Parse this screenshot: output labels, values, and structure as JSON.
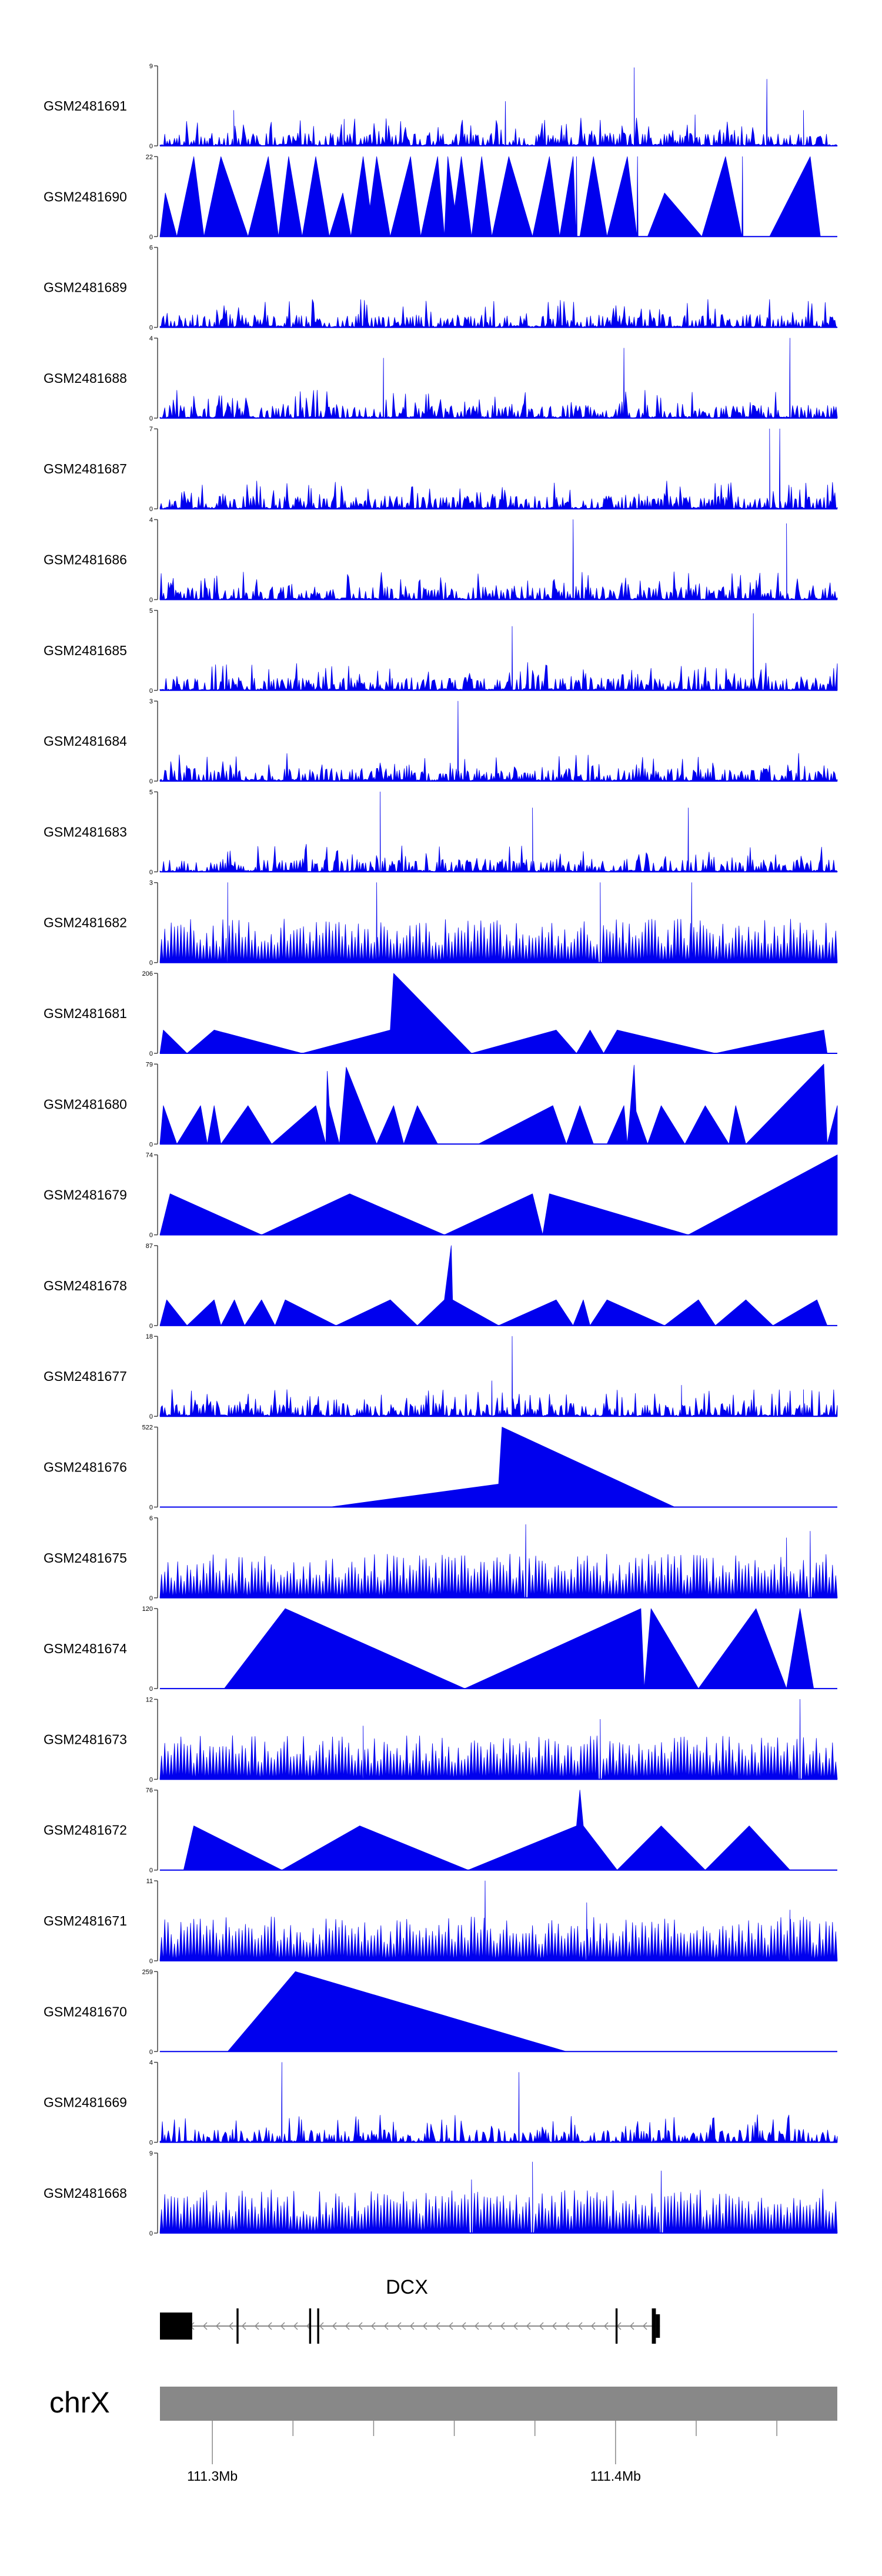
{
  "chart_data": {
    "type": "area",
    "title": "",
    "xlabel": "",
    "chromosome": "chrX",
    "x_range_mb": [
      111.287,
      111.455
    ],
    "x_ticks": [
      {
        "value": 111.3,
        "label": "111.3Mb"
      },
      {
        "value": 111.4,
        "label": "111.4Mb"
      }
    ],
    "minor_ticks_mb": [
      111.32,
      111.34,
      111.36,
      111.38,
      111.42,
      111.44
    ],
    "tracks": [
      {
        "name": "GSM2481691",
        "ymax": 9,
        "ylabel_top": "9",
        "ylabel_bottom": "0",
        "pattern": "dense",
        "seed": 11,
        "spikes": [
          [
            0.109,
            4
          ],
          [
            0.272,
            3
          ],
          [
            0.51,
            5
          ],
          [
            0.7,
            8.8
          ],
          [
            0.79,
            3.5
          ],
          [
            0.896,
            7.5
          ],
          [
            0.95,
            4
          ]
        ]
      },
      {
        "name": "GSM2481690",
        "ymax": 22,
        "ylabel_top": "22",
        "ylabel_bottom": "0",
        "pattern": "points",
        "points": [
          [
            0.0,
            0
          ],
          [
            0.008,
            12
          ],
          [
            0.025,
            0
          ],
          [
            0.05,
            22
          ],
          [
            0.065,
            0
          ],
          [
            0.09,
            22
          ],
          [
            0.13,
            0
          ],
          [
            0.16,
            22
          ],
          [
            0.175,
            0
          ],
          [
            0.19,
            22
          ],
          [
            0.21,
            0
          ],
          [
            0.23,
            22
          ],
          [
            0.25,
            0
          ],
          [
            0.27,
            12
          ],
          [
            0.282,
            0
          ],
          [
            0.3,
            22
          ],
          [
            0.31,
            8
          ],
          [
            0.32,
            22
          ],
          [
            0.34,
            0
          ],
          [
            0.37,
            22
          ],
          [
            0.385,
            0
          ],
          [
            0.41,
            22
          ],
          [
            0.42,
            0
          ],
          [
            0.425,
            22
          ],
          [
            0.435,
            8
          ],
          [
            0.445,
            22
          ],
          [
            0.46,
            0
          ],
          [
            0.475,
            22
          ],
          [
            0.49,
            0
          ],
          [
            0.515,
            22
          ],
          [
            0.55,
            0
          ],
          [
            0.575,
            22
          ],
          [
            0.59,
            0
          ],
          [
            0.61,
            22
          ],
          [
            0.62,
            0
          ],
          [
            0.64,
            22
          ],
          [
            0.66,
            0
          ],
          [
            0.69,
            22
          ],
          [
            0.72,
            0
          ],
          [
            0.745,
            12
          ],
          [
            0.8,
            0
          ],
          [
            0.835,
            22
          ],
          [
            0.9,
            0
          ],
          [
            0.96,
            22
          ],
          [
            0.975,
            0
          ]
        ],
        "spikes": [
          [
            0.615,
            22
          ],
          [
            0.86,
            22
          ],
          [
            0.705,
            22
          ]
        ]
      },
      {
        "name": "GSM2481689",
        "ymax": 6,
        "ylabel_top": "6",
        "ylabel_bottom": "0",
        "pattern": "dense",
        "seed": 23,
        "spikes": []
      },
      {
        "name": "GSM2481688",
        "ymax": 4,
        "ylabel_top": "4",
        "ylabel_bottom": "0",
        "pattern": "dense",
        "seed": 31,
        "spikes": [
          [
            0.93,
            4
          ],
          [
            0.685,
            3.5
          ],
          [
            0.33,
            3
          ]
        ]
      },
      {
        "name": "GSM2481687",
        "ymax": 7,
        "ylabel_top": "7",
        "ylabel_bottom": "0",
        "pattern": "dense",
        "seed": 37,
        "spikes": [
          [
            0.915,
            7
          ],
          [
            0.9,
            7
          ]
        ]
      },
      {
        "name": "GSM2481686",
        "ymax": 4,
        "ylabel_top": "4",
        "ylabel_bottom": "0",
        "pattern": "dense",
        "seed": 41,
        "spikes": [
          [
            0.61,
            4
          ],
          [
            0.925,
            3.8
          ]
        ]
      },
      {
        "name": "GSM2481685",
        "ymax": 5,
        "ylabel_top": "5",
        "ylabel_bottom": "0",
        "pattern": "dense",
        "seed": 43,
        "spikes": [
          [
            0.876,
            4.8
          ],
          [
            0.52,
            4
          ]
        ]
      },
      {
        "name": "GSM2481684",
        "ymax": 3,
        "ylabel_top": "3",
        "ylabel_bottom": "0",
        "pattern": "dense",
        "seed": 47,
        "spikes": [
          [
            0.44,
            3
          ]
        ]
      },
      {
        "name": "GSM2481683",
        "ymax": 5,
        "ylabel_top": "5",
        "ylabel_bottom": "0",
        "pattern": "dense",
        "seed": 53,
        "spikes": [
          [
            0.325,
            5
          ],
          [
            0.55,
            4
          ],
          [
            0.78,
            4
          ]
        ]
      },
      {
        "name": "GSM2481682",
        "ymax": 3,
        "ylabel_top": "3",
        "ylabel_bottom": "0",
        "pattern": "sparse",
        "seed": 59,
        "spikes": [
          [
            0.1,
            3
          ],
          [
            0.32,
            3
          ],
          [
            0.65,
            3
          ],
          [
            0.785,
            3
          ]
        ]
      },
      {
        "name": "GSM2481681",
        "ymax": 206,
        "ylabel_top": "206",
        "ylabel_bottom": "0",
        "pattern": "points",
        "points": [
          [
            0.0,
            0
          ],
          [
            0.005,
            60
          ],
          [
            0.04,
            0
          ],
          [
            0.08,
            60
          ],
          [
            0.21,
            0
          ],
          [
            0.34,
            60
          ],
          [
            0.345,
            206
          ],
          [
            0.46,
            0
          ],
          [
            0.585,
            60
          ],
          [
            0.615,
            0
          ],
          [
            0.635,
            60
          ],
          [
            0.655,
            0
          ],
          [
            0.675,
            60
          ],
          [
            0.82,
            0
          ],
          [
            0.98,
            60
          ],
          [
            0.985,
            0
          ]
        ]
      },
      {
        "name": "GSM2481680",
        "ymax": 79,
        "ylabel_top": "79",
        "ylabel_bottom": "0",
        "pattern": "points",
        "points": [
          [
            0.0,
            0
          ],
          [
            0.005,
            38
          ],
          [
            0.025,
            0
          ],
          [
            0.06,
            38
          ],
          [
            0.07,
            0
          ],
          [
            0.08,
            38
          ],
          [
            0.09,
            0
          ],
          [
            0.13,
            38
          ],
          [
            0.165,
            0
          ],
          [
            0.23,
            38
          ],
          [
            0.245,
            0
          ],
          [
            0.247,
            72
          ],
          [
            0.25,
            38
          ],
          [
            0.265,
            0
          ],
          [
            0.275,
            76
          ],
          [
            0.32,
            0
          ],
          [
            0.345,
            38
          ],
          [
            0.36,
            0
          ],
          [
            0.38,
            38
          ],
          [
            0.41,
            0
          ],
          [
            0.47,
            0
          ],
          [
            0.58,
            38
          ],
          [
            0.6,
            0
          ],
          [
            0.62,
            38
          ],
          [
            0.64,
            0
          ],
          [
            0.66,
            0
          ],
          [
            0.685,
            38
          ],
          [
            0.69,
            0
          ],
          [
            0.7,
            78
          ],
          [
            0.705,
            0
          ],
          [
            0.7,
            38
          ],
          [
            0.72,
            0
          ],
          [
            0.74,
            38
          ],
          [
            0.775,
            0
          ],
          [
            0.805,
            38
          ],
          [
            0.84,
            0
          ],
          [
            0.85,
            38
          ],
          [
            0.865,
            0
          ],
          [
            0.98,
            79
          ],
          [
            0.985,
            0
          ],
          [
            1.0,
            38
          ]
        ]
      },
      {
        "name": "GSM2481679",
        "ymax": 74,
        "ylabel_top": "74",
        "ylabel_bottom": "0",
        "pattern": "points",
        "points": [
          [
            0.0,
            0
          ],
          [
            0.015,
            38
          ],
          [
            0.15,
            0
          ],
          [
            0.28,
            38
          ],
          [
            0.42,
            0
          ],
          [
            0.55,
            38
          ],
          [
            0.565,
            0
          ],
          [
            0.575,
            38
          ],
          [
            0.78,
            0
          ],
          [
            1.0,
            74
          ]
        ]
      },
      {
        "name": "GSM2481678",
        "ymax": 87,
        "ylabel_top": "87",
        "ylabel_bottom": "0",
        "pattern": "points",
        "points": [
          [
            0.0,
            0
          ],
          [
            0.01,
            28
          ],
          [
            0.04,
            0
          ],
          [
            0.08,
            28
          ],
          [
            0.09,
            0
          ],
          [
            0.11,
            28
          ],
          [
            0.125,
            0
          ],
          [
            0.15,
            28
          ],
          [
            0.17,
            0
          ],
          [
            0.185,
            28
          ],
          [
            0.26,
            0
          ],
          [
            0.34,
            28
          ],
          [
            0.38,
            0
          ],
          [
            0.42,
            28
          ],
          [
            0.43,
            87
          ],
          [
            0.432,
            28
          ],
          [
            0.5,
            0
          ],
          [
            0.585,
            28
          ],
          [
            0.61,
            0
          ],
          [
            0.625,
            28
          ],
          [
            0.635,
            0
          ],
          [
            0.66,
            28
          ],
          [
            0.745,
            0
          ],
          [
            0.795,
            28
          ],
          [
            0.82,
            0
          ],
          [
            0.865,
            28
          ],
          [
            0.905,
            0
          ],
          [
            0.97,
            28
          ],
          [
            0.985,
            0
          ]
        ]
      },
      {
        "name": "GSM2481677",
        "ymax": 18,
        "ylabel_top": "18",
        "ylabel_bottom": "0",
        "pattern": "dense",
        "seed": 61,
        "spikes": [
          [
            0.52,
            18
          ],
          [
            0.49,
            8
          ],
          [
            0.77,
            7
          ],
          [
            0.95,
            6
          ]
        ]
      },
      {
        "name": "GSM2481676",
        "ymax": 522,
        "ylabel_top": "522",
        "ylabel_bottom": "0",
        "pattern": "points",
        "points": [
          [
            0.0,
            0
          ],
          [
            0.25,
            0
          ],
          [
            0.5,
            150
          ],
          [
            0.505,
            522
          ],
          [
            0.76,
            0
          ]
        ]
      },
      {
        "name": "GSM2481675",
        "ymax": 6,
        "ylabel_top": "6",
        "ylabel_bottom": "0",
        "pattern": "sparse",
        "seed": 67,
        "spikes": [
          [
            0.54,
            5.5
          ],
          [
            0.96,
            5
          ],
          [
            0.925,
            4.5
          ]
        ]
      },
      {
        "name": "GSM2481674",
        "ymax": 120,
        "ylabel_top": "120",
        "ylabel_bottom": "0",
        "pattern": "points",
        "points": [
          [
            0.0,
            0
          ],
          [
            0.095,
            0
          ],
          [
            0.185,
            120
          ],
          [
            0.45,
            0
          ],
          [
            0.71,
            120
          ],
          [
            0.715,
            0
          ],
          [
            0.725,
            120
          ],
          [
            0.795,
            0
          ],
          [
            0.88,
            120
          ],
          [
            0.925,
            0
          ],
          [
            0.945,
            120
          ],
          [
            0.965,
            0
          ]
        ]
      },
      {
        "name": "GSM2481673",
        "ymax": 12,
        "ylabel_top": "12",
        "ylabel_bottom": "0",
        "pattern": "sparse",
        "seed": 71,
        "spikes": [
          [
            0.945,
            12
          ],
          [
            0.65,
            9
          ],
          [
            0.3,
            8
          ]
        ]
      },
      {
        "name": "GSM2481672",
        "ymax": 76,
        "ylabel_top": "76",
        "ylabel_bottom": "0",
        "pattern": "points",
        "points": [
          [
            0.0,
            0
          ],
          [
            0.035,
            0
          ],
          [
            0.05,
            42
          ],
          [
            0.18,
            0
          ],
          [
            0.295,
            42
          ],
          [
            0.455,
            0
          ],
          [
            0.615,
            42
          ],
          [
            0.62,
            76
          ],
          [
            0.625,
            42
          ],
          [
            0.675,
            0
          ],
          [
            0.74,
            42
          ],
          [
            0.805,
            0
          ],
          [
            0.87,
            42
          ],
          [
            0.93,
            0
          ]
        ]
      },
      {
        "name": "GSM2481671",
        "ymax": 11,
        "ylabel_top": "11",
        "ylabel_bottom": "0",
        "pattern": "sparse",
        "seed": 73,
        "spikes": [
          [
            0.48,
            11
          ],
          [
            0.63,
            8
          ],
          [
            0.93,
            7
          ]
        ]
      },
      {
        "name": "GSM2481670",
        "ymax": 259,
        "ylabel_top": "259",
        "ylabel_bottom": "0",
        "pattern": "points",
        "points": [
          [
            0.0,
            0
          ],
          [
            0.1,
            0
          ],
          [
            0.2,
            259
          ],
          [
            0.6,
            0
          ]
        ]
      },
      {
        "name": "GSM2481669",
        "ymax": 4,
        "ylabel_top": "4",
        "ylabel_bottom": "0",
        "pattern": "dense",
        "seed": 79,
        "spikes": [
          [
            0.18,
            4
          ],
          [
            0.53,
            3.5
          ]
        ]
      },
      {
        "name": "GSM2481668",
        "ymax": 9,
        "ylabel_top": "9",
        "ylabel_bottom": "0",
        "pattern": "sparse",
        "seed": 83,
        "spikes": [
          [
            0.55,
            8
          ],
          [
            0.74,
            7
          ],
          [
            0.46,
            6
          ]
        ]
      }
    ],
    "gene": {
      "name": "DCX",
      "strand": "-",
      "exons_mb": [
        [
          111.287,
          111.295
        ],
        [
          111.306,
          111.3065
        ],
        [
          111.324,
          111.3245
        ],
        [
          111.326,
          111.3265
        ],
        [
          111.4,
          111.4005
        ],
        [
          111.409,
          111.41
        ],
        [
          111.41,
          111.411
        ]
      ],
      "span_mb": [
        111.287,
        111.411
      ]
    },
    "colors": {
      "signal": "#0000ee",
      "axis": "#444444",
      "chromosome_bar": "#888888",
      "gene": "#000000",
      "intron": "#888888"
    }
  }
}
